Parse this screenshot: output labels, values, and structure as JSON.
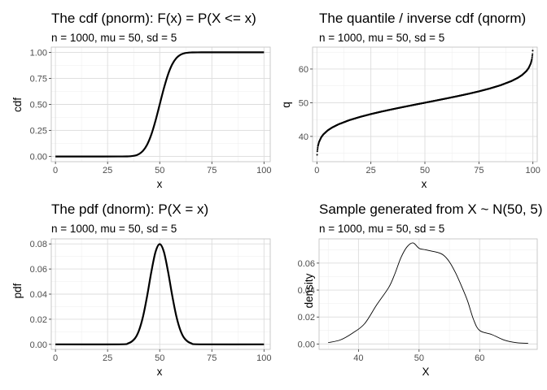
{
  "chart_data": [
    {
      "id": "cdf",
      "type": "line",
      "title": "The cdf (pnorm): F(x) = P(X <= x)",
      "subtitle": "n = 1000, mu = 50, sd = 5",
      "xlabel": "x",
      "ylabel": "cdf",
      "xlim": [
        -2,
        103
      ],
      "ylim": [
        -0.05,
        1.05
      ],
      "xticks": [
        0,
        25,
        50,
        75,
        100
      ],
      "yticks": [
        0,
        0.25,
        0.5,
        0.75,
        1
      ],
      "ytick_labels": [
        "0.00",
        "0.25",
        "0.50",
        "0.75",
        "1.00"
      ],
      "grid": true,
      "x": [
        0,
        30,
        35,
        38,
        40,
        42,
        44,
        46,
        48,
        50,
        52,
        54,
        56,
        58,
        60,
        62,
        65,
        70,
        100
      ],
      "y": [
        0,
        3e-05,
        0.0013,
        0.008,
        0.023,
        0.055,
        0.115,
        0.212,
        0.345,
        0.5,
        0.655,
        0.788,
        0.885,
        0.945,
        0.977,
        0.992,
        0.9987,
        1,
        1
      ],
      "stroke_width": 2.2
    },
    {
      "id": "quantile",
      "type": "scatter",
      "title": "The quantile / inverse cdf (qnorm)",
      "subtitle": "n = 1000, mu = 50, sd = 5",
      "xlabel": "x",
      "ylabel": "q",
      "xlim": [
        -2,
        102
      ],
      "ylim": [
        32.5,
        66.5
      ],
      "xticks": [
        0,
        25,
        50,
        75,
        100
      ],
      "yticks": [
        40,
        50,
        60
      ],
      "ytick_labels": [
        "40",
        "50",
        "60"
      ],
      "grid": true,
      "x": [
        0.1,
        0.2,
        0.5,
        1,
        2,
        3,
        5,
        7,
        10,
        15,
        20,
        25,
        30,
        35,
        40,
        45,
        50,
        55,
        60,
        65,
        70,
        75,
        80,
        85,
        90,
        93,
        95,
        97,
        98,
        99,
        99.5,
        99.8,
        99.9
      ],
      "y": [
        34.55,
        35.6,
        37.12,
        38.37,
        39.73,
        40.6,
        41.78,
        42.62,
        43.59,
        44.82,
        45.79,
        46.63,
        47.38,
        48.07,
        48.73,
        49.37,
        50,
        50.63,
        51.27,
        51.93,
        52.62,
        53.37,
        54.21,
        55.18,
        56.41,
        57.38,
        58.22,
        59.4,
        60.27,
        61.63,
        62.88,
        64.4,
        65.45
      ],
      "point_size": 1.5
    },
    {
      "id": "pdf",
      "type": "line",
      "title": "The pdf (dnorm): P(X = x)",
      "subtitle": "n = 1000, mu = 50, sd = 5",
      "xlabel": "x",
      "ylabel": "pdf",
      "xlim": [
        -2,
        103
      ],
      "ylim": [
        -0.004,
        0.084
      ],
      "xticks": [
        0,
        25,
        50,
        75,
        100
      ],
      "yticks": [
        0,
        0.02,
        0.04,
        0.06,
        0.08
      ],
      "ytick_labels": [
        "0.00",
        "0.02",
        "0.04",
        "0.06",
        "0.08"
      ],
      "grid": true,
      "x": [
        0,
        30,
        35,
        38,
        40,
        42,
        44,
        46,
        48,
        50,
        52,
        54,
        56,
        58,
        60,
        62,
        65,
        70,
        100
      ],
      "y": [
        0,
        1.1e-05,
        0.00089,
        0.0045,
        0.0108,
        0.0222,
        0.0388,
        0.0579,
        0.0737,
        0.0798,
        0.0737,
        0.0579,
        0.0388,
        0.0222,
        0.0108,
        0.0045,
        0.00089,
        1.1e-05,
        0
      ],
      "stroke_width": 2.2
    },
    {
      "id": "density",
      "type": "line",
      "title": "Sample generated from X ~ N(50, 5)",
      "subtitle": "n = 1000, mu = 50, sd = 5",
      "xlabel": "X",
      "ylabel": "density",
      "xlim": [
        33.5,
        69.5
      ],
      "ylim": [
        -0.004,
        0.078
      ],
      "xticks": [
        40,
        50,
        60
      ],
      "yticks": [
        0,
        0.02,
        0.04,
        0.06
      ],
      "ytick_labels": [
        "0.00",
        "0.02",
        "0.04",
        "0.06"
      ],
      "grid": true,
      "x": [
        35,
        37,
        39,
        41,
        43,
        45,
        46,
        47,
        48,
        49,
        50,
        51,
        52,
        53,
        54,
        55,
        56,
        57,
        58,
        59,
        60,
        62,
        64,
        66,
        68
      ],
      "y": [
        0.001,
        0.003,
        0.008,
        0.015,
        0.029,
        0.042,
        0.052,
        0.064,
        0.072,
        0.075,
        0.071,
        0.07,
        0.069,
        0.068,
        0.066,
        0.061,
        0.053,
        0.043,
        0.032,
        0.018,
        0.01,
        0.007,
        0.003,
        0.001,
        0.0005
      ],
      "stroke_width": 0.9
    }
  ]
}
